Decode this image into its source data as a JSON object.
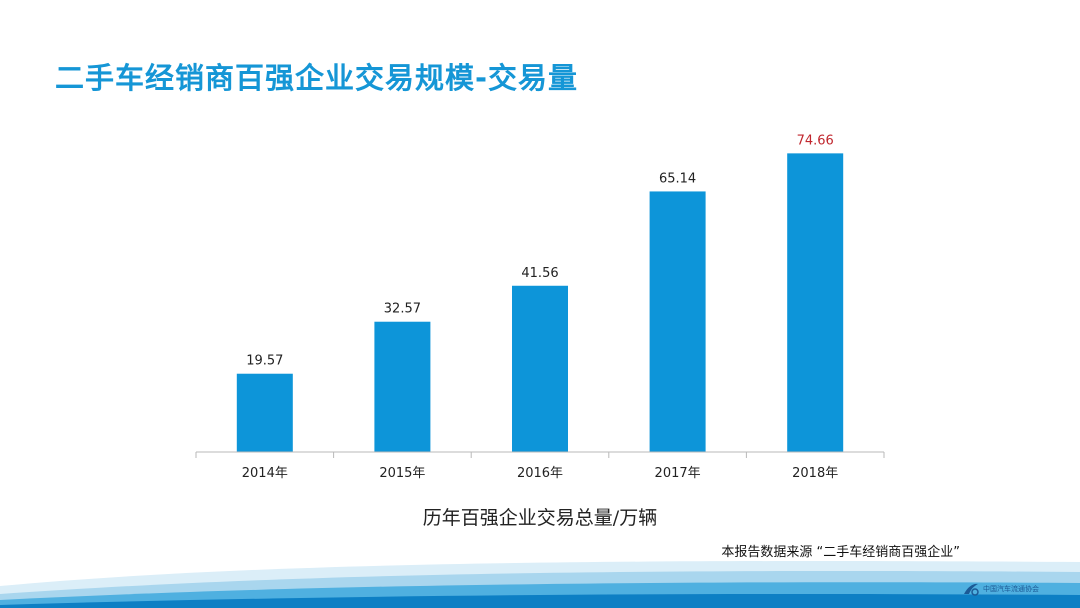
{
  "page": {
    "title": "二手车经销商百强企业交易规模-交易量",
    "caption": "历年百强企业交易总量/万辆",
    "source_note": "本报告数据来源 “二手车经销商百强企业”",
    "logo_text": "中国汽车流通协会"
  },
  "colors": {
    "title": "#1596d6",
    "bar": "#0d95d9",
    "highlight_label": "#c0262d",
    "label": "#222222"
  },
  "chart_data": {
    "type": "bar",
    "title": "",
    "xlabel": "历年百强企业交易总量/万辆",
    "ylabel": "",
    "categories": [
      "2014年",
      "2015年",
      "2016年",
      "2017年",
      "2018年"
    ],
    "values": [
      19.57,
      32.57,
      41.56,
      65.14,
      74.66
    ],
    "labels": [
      "19.57",
      "32.57",
      "41.56",
      "65.14",
      "74.66"
    ],
    "highlight_index": 4,
    "ylim": [
      0,
      80
    ],
    "grid": false,
    "legend": "none"
  }
}
